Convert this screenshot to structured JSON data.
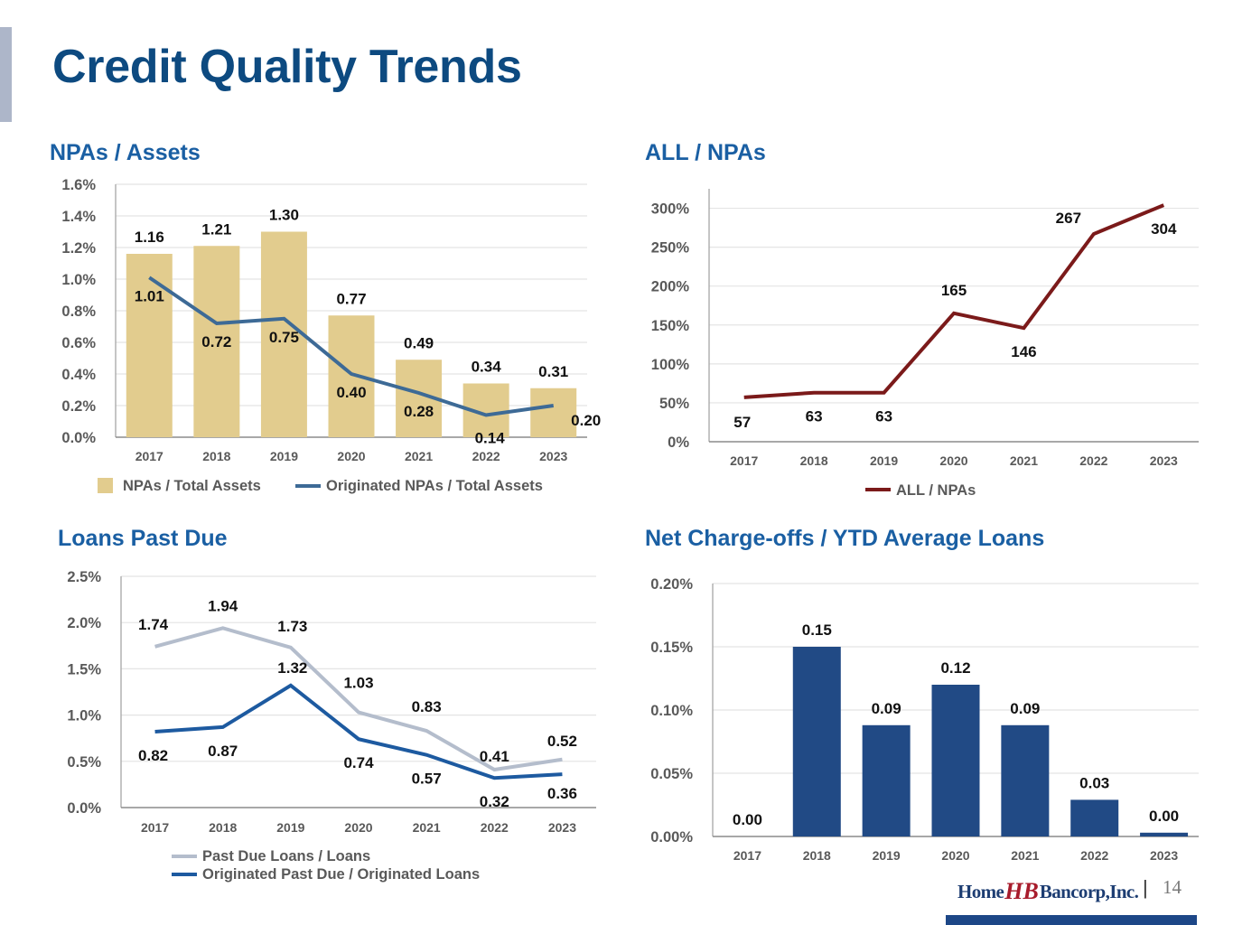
{
  "page": {
    "title": "Credit Quality Trends",
    "page_number": "14",
    "separator": "|",
    "logo": {
      "left": "Home",
      "mark": "HB",
      "right": "Bancorp,Inc."
    }
  },
  "colors": {
    "title": "#0d4a80",
    "section_title": "#1a5fa3",
    "npa_bar": "#e2cc8e",
    "npa_line": "#3d6a96",
    "all_line": "#7b1a1a",
    "past_due_line": "#b4bdcc",
    "orig_past_due_line": "#1d5aa0",
    "nco_bar": "#214a85"
  },
  "chart_data": [
    {
      "id": "npas",
      "type": "bar",
      "title": "NPAs / Assets",
      "categories": [
        "2017",
        "2018",
        "2019",
        "2020",
        "2021",
        "2022",
        "2023"
      ],
      "series": [
        {
          "name": "NPAs / Total Assets",
          "kind": "bar",
          "values": [
            1.16,
            1.21,
            1.3,
            0.77,
            0.49,
            0.34,
            0.31
          ],
          "labels": [
            "1.16",
            "1.21",
            "1.30",
            "0.77",
            "0.49",
            "0.34",
            "0.31"
          ]
        },
        {
          "name": "Originated NPAs / Total Assets",
          "kind": "line",
          "values": [
            1.01,
            0.72,
            0.75,
            0.4,
            0.28,
            0.14,
            0.2
          ],
          "labels": [
            "1.01",
            "0.72",
            "0.75",
            "0.40",
            "0.28",
            "0.14",
            "0.20"
          ]
        }
      ],
      "yticks": [
        "0.0%",
        "0.2%",
        "0.4%",
        "0.6%",
        "0.8%",
        "1.0%",
        "1.2%",
        "1.4%",
        "1.6%"
      ],
      "ylim": [
        0,
        1.6
      ],
      "xlabel": "",
      "ylabel": "",
      "grid": true,
      "legend": "bottom"
    },
    {
      "id": "all",
      "type": "line",
      "title": "ALL / NPAs",
      "categories": [
        "2017",
        "2018",
        "2019",
        "2020",
        "2021",
        "2022",
        "2023"
      ],
      "series": [
        {
          "name": "ALL / NPAs",
          "kind": "line",
          "values": [
            57,
            63,
            63,
            165,
            146,
            267,
            304
          ],
          "labels": [
            "57",
            "63",
            "63",
            "165",
            "146",
            "267",
            "304"
          ]
        }
      ],
      "yticks": [
        "0%",
        "50%",
        "100%",
        "150%",
        "200%",
        "250%",
        "300%"
      ],
      "ylim": [
        0,
        325
      ],
      "xlabel": "",
      "ylabel": "",
      "grid": true,
      "legend": "bottom"
    },
    {
      "id": "pastdue",
      "type": "line",
      "title": "Loans Past Due",
      "categories": [
        "2017",
        "2018",
        "2019",
        "2020",
        "2021",
        "2022",
        "2023"
      ],
      "series": [
        {
          "name": "Past Due Loans / Loans",
          "kind": "line",
          "values": [
            1.74,
            1.94,
            1.73,
            1.03,
            0.83,
            0.41,
            0.52
          ],
          "labels": [
            "1.74",
            "1.94",
            "1.73",
            "1.03",
            "0.83",
            "0.41",
            "0.52"
          ]
        },
        {
          "name": "Originated Past Due / Originated Loans",
          "kind": "line",
          "values": [
            0.82,
            0.87,
            1.32,
            0.74,
            0.57,
            0.32,
            0.36
          ],
          "labels": [
            "0.82",
            "0.87",
            "1.32",
            "0.74",
            "0.57",
            "0.32",
            "0.36"
          ]
        }
      ],
      "yticks": [
        "0.0%",
        "0.5%",
        "1.0%",
        "1.5%",
        "2.0%",
        "2.5%"
      ],
      "ylim": [
        0,
        2.5
      ],
      "xlabel": "",
      "ylabel": "",
      "grid": true,
      "legend": "bottom"
    },
    {
      "id": "nco",
      "type": "bar",
      "title": "Net Charge-offs / YTD Average Loans",
      "categories": [
        "2017",
        "2018",
        "2019",
        "2020",
        "2021",
        "2022",
        "2023"
      ],
      "series": [
        {
          "name": "Net Charge-offs / YTD Average Loans",
          "kind": "bar",
          "values": [
            0.0,
            0.15,
            0.088,
            0.12,
            0.088,
            0.029,
            0.003
          ],
          "labels": [
            "0.00",
            "0.15",
            "0.09",
            "0.12",
            "0.09",
            "0.03",
            "0.00"
          ]
        }
      ],
      "yticks": [
        "0.00%",
        "0.05%",
        "0.10%",
        "0.15%",
        "0.20%"
      ],
      "ylim": [
        0,
        0.2
      ],
      "xlabel": "",
      "ylabel": "",
      "grid": true,
      "legend": "none"
    }
  ]
}
